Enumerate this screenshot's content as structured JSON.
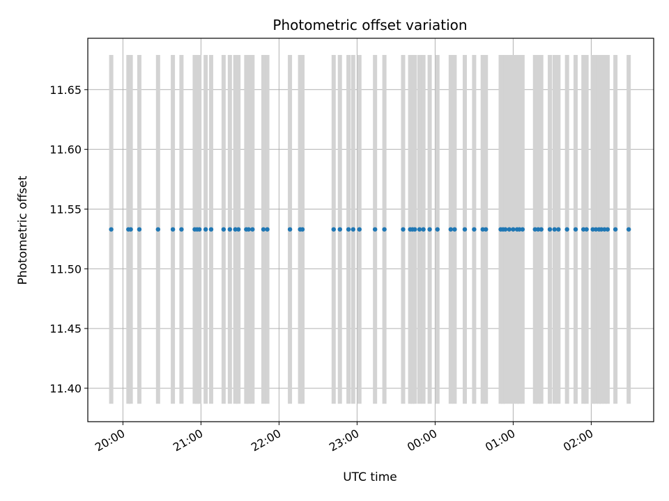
{
  "chart_data": {
    "type": "scatter",
    "title": "Photometric offset variation",
    "xlabel": "UTC time",
    "ylabel": "Photometric offset",
    "x_unit": "hours (UTC, continuing past midnight)",
    "xlim": [
      19.55,
      26.8
    ],
    "ylim": [
      11.372,
      11.693
    ],
    "x_ticks": [
      {
        "value": 20,
        "label": "20:00"
      },
      {
        "value": 21,
        "label": "21:00"
      },
      {
        "value": 22,
        "label": "22:00"
      },
      {
        "value": 23,
        "label": "23:00"
      },
      {
        "value": 24,
        "label": "00:00"
      },
      {
        "value": 25,
        "label": "01:00"
      },
      {
        "value": 26,
        "label": "02:00"
      }
    ],
    "y_ticks": [
      {
        "value": 11.4,
        "label": "11.40"
      },
      {
        "value": 11.45,
        "label": "11.45"
      },
      {
        "value": 11.5,
        "label": "11.50"
      },
      {
        "value": 11.55,
        "label": "11.55"
      },
      {
        "value": 11.6,
        "label": "11.60"
      },
      {
        "value": 11.65,
        "label": "11.65"
      }
    ],
    "grid": true,
    "point_color": "#1f77b4",
    "errorbar_color": "#d3d3d3",
    "error_range": [
      11.387,
      11.679
    ],
    "series": [
      {
        "y": 11.533,
        "x": [
          19.85,
          20.07,
          20.1,
          20.21,
          20.45,
          20.64,
          20.75,
          20.92,
          20.95,
          20.98,
          21.06,
          21.13,
          21.29,
          21.37,
          21.44,
          21.48,
          21.58,
          21.61,
          21.66,
          21.8,
          21.85,
          22.14,
          22.27,
          22.3,
          22.7,
          22.78,
          22.89,
          22.95,
          23.03,
          23.23,
          23.35,
          23.59,
          23.68,
          23.71,
          23.74,
          23.8,
          23.85,
          23.93,
          24.03,
          24.2,
          24.25,
          24.38,
          24.5,
          24.61,
          24.65,
          24.84,
          24.87,
          24.9,
          24.95,
          25.0,
          25.05,
          25.08,
          25.12,
          25.28,
          25.32,
          25.36,
          25.47,
          25.53,
          25.58,
          25.69,
          25.8,
          25.9,
          25.94,
          26.02,
          26.06,
          26.1,
          26.13,
          26.17,
          26.21,
          26.31,
          26.48
        ]
      }
    ]
  }
}
